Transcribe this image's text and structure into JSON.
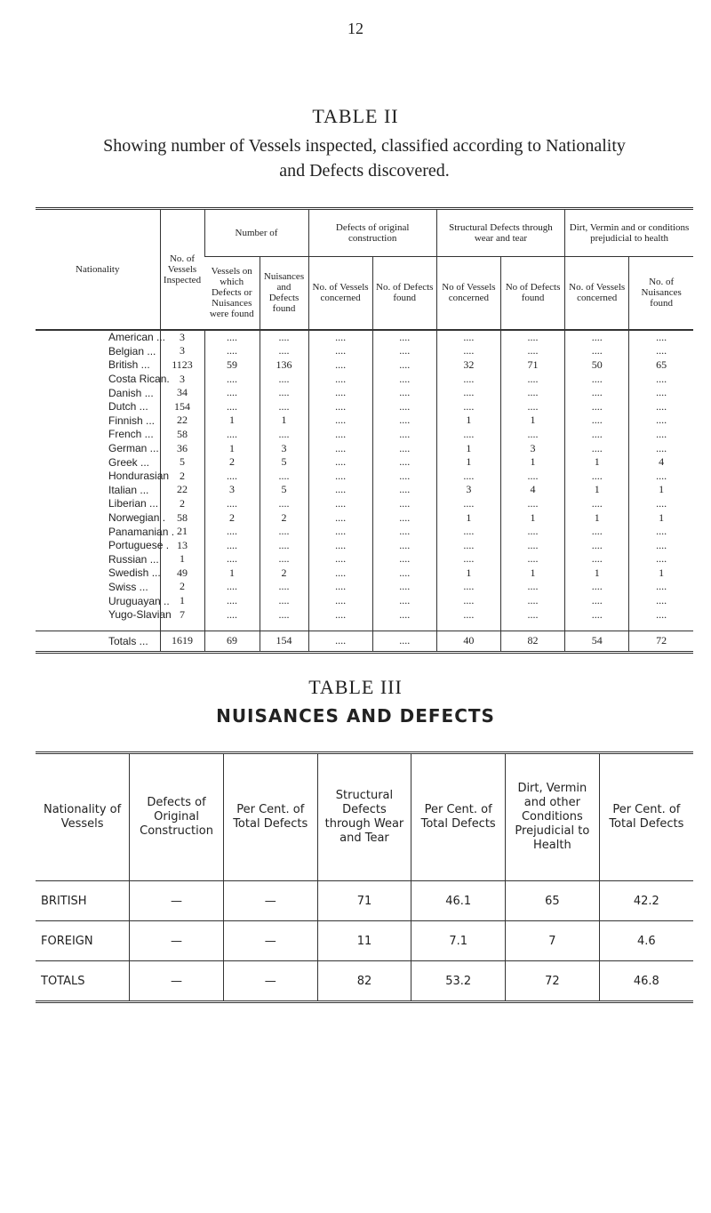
{
  "page_number": "12",
  "table2": {
    "title": "TABLE II",
    "caption": "Showing number of Vessels inspected, classified according to Nationality and Defects discovered.",
    "groups": [
      "Number of",
      "Defects of original construction",
      "Structural Defects through wear and tear",
      "Dirt, Vermin and or conditions prejudicial to health"
    ],
    "header": [
      "Nationality",
      "No. of Vessels Inspected",
      "Vessels on which Defects or Nuisances were found",
      "Nuisances and Defects found",
      "No. of Vessels concerned",
      "No. of Defects found",
      "No of Vessels concerned",
      "No of Defects found",
      "No. of Vessels concerned",
      "No. of Nuisances found"
    ],
    "rows": [
      [
        "American ...",
        3,
        "....",
        "....",
        "....",
        "....",
        "....",
        "....",
        "....",
        "...."
      ],
      [
        "Belgian ...",
        3,
        "....",
        "....",
        "....",
        "....",
        "....",
        "....",
        "....",
        "...."
      ],
      [
        "British ...",
        1123,
        59,
        136,
        "....",
        "....",
        32,
        71,
        50,
        65
      ],
      [
        "Costa Rican.",
        3,
        "....",
        "....",
        "....",
        "....",
        "....",
        "....",
        "....",
        "...."
      ],
      [
        "Danish ...",
        34,
        "....",
        "....",
        "....",
        "....",
        "....",
        "....",
        "....",
        "...."
      ],
      [
        "Dutch ...",
        154,
        "....",
        "....",
        "....",
        "....",
        "....",
        "....",
        "....",
        "...."
      ],
      [
        "Finnish ...",
        22,
        1,
        1,
        "....",
        "....",
        1,
        1,
        "....",
        "...."
      ],
      [
        "French ...",
        58,
        "....",
        "....",
        "....",
        "....",
        "....",
        "....",
        "....",
        "...."
      ],
      [
        "German ...",
        36,
        1,
        3,
        "....",
        "....",
        1,
        3,
        "....",
        "...."
      ],
      [
        "Greek ...",
        5,
        2,
        5,
        "....",
        "....",
        1,
        1,
        1,
        4
      ],
      [
        "Hondurasian",
        2,
        "....",
        "....",
        "....",
        "....",
        "....",
        "....",
        "....",
        "...."
      ],
      [
        "Italian ...",
        22,
        3,
        5,
        "....",
        "....",
        3,
        4,
        1,
        1
      ],
      [
        "Liberian ...",
        2,
        "....",
        "....",
        "....",
        "....",
        "....",
        "....",
        "....",
        "...."
      ],
      [
        "Norwegian .",
        58,
        2,
        2,
        "....",
        "....",
        1,
        1,
        1,
        1
      ],
      [
        "Panamanian .",
        21,
        "....",
        "....",
        "....",
        "....",
        "....",
        "....",
        "....",
        "...."
      ],
      [
        "Portuguese .",
        13,
        "....",
        "....",
        "....",
        "....",
        "....",
        "....",
        "....",
        "...."
      ],
      [
        "Russian ...",
        1,
        "....",
        "....",
        "....",
        "....",
        "....",
        "....",
        "....",
        "...."
      ],
      [
        "Swedish ...",
        49,
        1,
        2,
        "....",
        "....",
        1,
        1,
        1,
        1
      ],
      [
        "Swiss ...",
        2,
        "....",
        "....",
        "....",
        "....",
        "....",
        "....",
        "....",
        "...."
      ],
      [
        "Uruguayan ..",
        1,
        "....",
        "....",
        "....",
        "....",
        "....",
        "....",
        "....",
        "...."
      ],
      [
        "Yugo-Slavian",
        7,
        "....",
        "....",
        "....",
        "....",
        "....",
        "....",
        "....",
        "...."
      ]
    ],
    "totals": [
      "Totals ...",
      1619,
      69,
      154,
      "....",
      "....",
      40,
      82,
      54,
      72
    ]
  },
  "table3": {
    "title": "TABLE III",
    "subtitle": "NUISANCES AND DEFECTS",
    "header": [
      "Nationality of Vessels",
      "Defects of Original Construction",
      "Per Cent. of Total Defects",
      "Structural Defects through Wear and Tear",
      "Per Cent. of Total Defects",
      "Dirt, Vermin and other Conditions Prejudicial to Health",
      "Per Cent. of Total Defects"
    ],
    "rows": [
      [
        "BRITISH",
        "—",
        "—",
        71,
        46.1,
        65,
        42.2
      ],
      [
        "FOREIGN",
        "—",
        "—",
        11,
        7.1,
        7,
        4.6
      ],
      [
        "TOTALS",
        "—",
        "—",
        82,
        53.2,
        72,
        46.8
      ]
    ]
  }
}
